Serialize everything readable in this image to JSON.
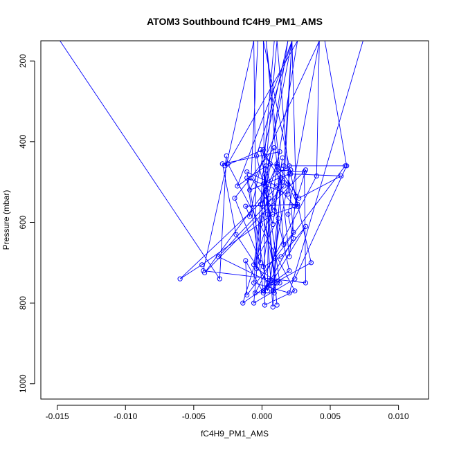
{
  "chart_data": {
    "type": "line",
    "title": "ATOM3 Southbound fC4H9_PM1_AMS",
    "xlabel": "fC4H9_PM1_AMS",
    "ylabel": "Pressure (mbar)",
    "xlim": [
      -0.0162,
      0.0122
    ],
    "ylim": [
      1038,
      150
    ],
    "y_reversed": true,
    "x_ticks": [
      -0.015,
      -0.01,
      -0.005,
      0.0,
      0.005,
      0.01
    ],
    "x_tick_labels": [
      "-0.015",
      "-0.010",
      "-0.005",
      "0.000",
      "0.005",
      "0.010"
    ],
    "y_ticks": [
      200,
      400,
      600,
      800,
      1000
    ],
    "y_tick_labels": [
      "200",
      "400",
      "600",
      "800",
      "1000"
    ],
    "grid": false,
    "legend": "none",
    "colors": {
      "series": "#0000ff",
      "axis": "#000000",
      "background": "#ffffff"
    },
    "series": [
      {
        "marker": "open-circle",
        "line": true,
        "x": [
          -0.0148,
          -0.0031,
          -0.0026,
          -0.0027,
          0.0001,
          0.0006,
          0.0021,
          0.0004,
          -0.0011,
          0.0011,
          0.0024,
          0.0032,
          -0.0042,
          0.0003,
          0.0011,
          0.0027,
          0.0058,
          0.0021,
          0.0036,
          0.0004,
          0.0005,
          0.0002,
          0.0011,
          0.0004,
          0.0003,
          0.0009,
          -0.002,
          -0.0001,
          -0.0001,
          0.0013,
          -0.0029,
          -0.0019,
          0.0009,
          -0.0005,
          0.004,
          0.0042,
          -0.0003,
          -0.0008,
          0.0009,
          0.0015,
          0.0008,
          -0.0004,
          0.0022,
          -0.0018,
          0.0003,
          0.002,
          -0.0014,
          0.0014,
          0.0008,
          0.0011,
          -0.0001,
          0.0022,
          0.0016,
          0.0006,
          0.0001,
          -0.0011,
          0.0019,
          0.002,
          -0.0009,
          0.0042,
          0.0019,
          0.0023,
          0.0001,
          -0.0012,
          -0.0011,
          0.0061,
          0.002,
          0.0001,
          0.0008,
          0.0012,
          -0.0006,
          0.0019,
          -0.0009,
          -0.0012,
          0.0026,
          0.0019,
          0.0011,
          0.0031,
          0.0032,
          -0.0043,
          -0.0006,
          -0.0004,
          0.0013,
          -0.0001,
          0.0015,
          -0.006,
          -0.0044,
          0.0008,
          0.0026,
          0.0001,
          0.0002,
          0.0024,
          -0.0025,
          0.0026,
          0.0011,
          0.0001,
          0.0014,
          0.0032,
          0.0007,
          -0.0032,
          0.0016,
          0.0022,
          0.0025,
          0.002,
          0.0003,
          0.0016,
          0.0023,
          0.0011,
          -0.0006,
          0.0024,
          0.0062,
          0.0046,
          0.006,
          0.0008,
          -0.0011,
          -0.0005,
          -0.0015,
          -0.0004,
          0.0021,
          0.0025,
          0.0015,
          0.0012,
          0.0004,
          0.0026,
          0.0014,
          0.0022,
          0.0074,
          0.002,
          -0.0006,
          0.0009,
          0.0022,
          0.0011,
          -0.0003,
          0.0018,
          0.0031,
          0.0018,
          -0.0013,
          -0.0024
        ],
        "y": [
          150,
          740,
          435,
          460,
          420,
          455,
          470,
          770,
          475,
          510,
          560,
          470,
          725,
          520,
          455,
          540,
          485,
          480,
          700,
          760,
          540,
          480,
          805,
          580,
          510,
          415,
          540,
          700,
          605,
          425,
          455,
          630,
          775,
          775,
          485,
          150,
          150,
          490,
          570,
          440,
          605,
          435,
          150,
          510,
          460,
          720,
          800,
          490,
          770,
          750,
          555,
          150,
          460,
          745,
          770,
          490,
          530,
          480,
          520,
          150,
          580,
          640,
          775,
          695,
          780,
          460,
          460,
          505,
          810,
          590,
          705,
          150,
          585,
          560,
          555,
          505,
          470,
          475,
          750,
          720,
          150,
          715,
          750,
          420,
          500,
          740,
          705,
          580,
          560,
          150,
          805,
          770,
          455,
          150,
          460,
          710,
          685,
          610,
          750,
          685,
          510,
          150,
          535,
          685,
          150,
          655,
          625,
          150,
          800,
          740,
          460,
          150,
          150,
          150,
          150,
          150,
          150,
          150,
          150,
          150,
          150,
          150,
          150,
          150,
          150,
          150,
          150,
          775,
          750,
          150,
          150,
          150,
          150,
          150,
          150,
          150,
          150,
          150
        ]
      }
    ]
  }
}
